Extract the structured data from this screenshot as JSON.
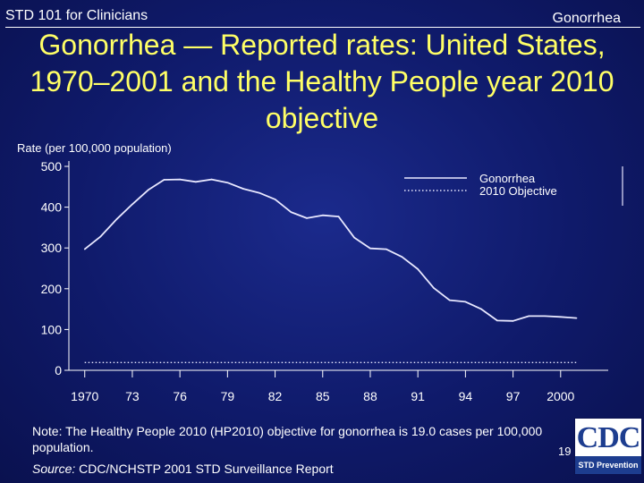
{
  "header": {
    "left_label": "STD 101 for Clinicians",
    "right_label": "Gonorrhea"
  },
  "slide": {
    "title": "Gonorrhea — Reported rates: United States, 1970–2001 and the Healthy People year 2010 objective",
    "note": "Note: The Healthy People 2010 (HP2010) objective for gonorrhea is 19.0 cases per 100,000 population.",
    "source_label": "Source:",
    "source_text": "CDC/NCHSTP 2001 STD Surveillance Report",
    "page_number": "19"
  },
  "logo": {
    "text": "CDC",
    "band_text": "STD Prevention"
  },
  "colors": {
    "title": "#ffff66",
    "text": "#ffffff",
    "background": "#101b6e",
    "logo_blue": "#1d3d8f"
  },
  "chart_data": {
    "type": "line",
    "title": "",
    "ylabel": "Rate (per 100,000 population)",
    "xlabel": "",
    "xlim": [
      1969,
      2003
    ],
    "ylim": [
      0,
      500
    ],
    "y_ticks": [
      0,
      100,
      200,
      300,
      400,
      500
    ],
    "x_ticks": [
      1970,
      1973,
      1976,
      1979,
      1982,
      1985,
      1988,
      1991,
      1994,
      1997,
      2000
    ],
    "x_tick_labels": [
      "1970",
      "73",
      "76",
      "79",
      "82",
      "85",
      "88",
      "91",
      "94",
      "97",
      "2000"
    ],
    "grid": false,
    "legend_position": "top-right",
    "series": [
      {
        "name": "Gonorrhea",
        "style": "solid",
        "x": [
          1970,
          1971,
          1972,
          1973,
          1974,
          1975,
          1976,
          1977,
          1978,
          1979,
          1980,
          1981,
          1982,
          1983,
          1984,
          1985,
          1986,
          1987,
          1988,
          1989,
          1990,
          1991,
          1992,
          1993,
          1994,
          1995,
          1996,
          1997,
          1998,
          1999,
          2000,
          2001
        ],
        "values": [
          297,
          328,
          370,
          407,
          442,
          467,
          468,
          462,
          468,
          460,
          445,
          435,
          419,
          388,
          373,
          380,
          377,
          325,
          299,
          297,
          278,
          248,
          202,
          172,
          168,
          150,
          122,
          121,
          133,
          133,
          131,
          128
        ]
      },
      {
        "name": "2010 Objective",
        "style": "dotted",
        "x": [
          1970,
          2001
        ],
        "values": [
          19,
          19
        ]
      }
    ]
  }
}
